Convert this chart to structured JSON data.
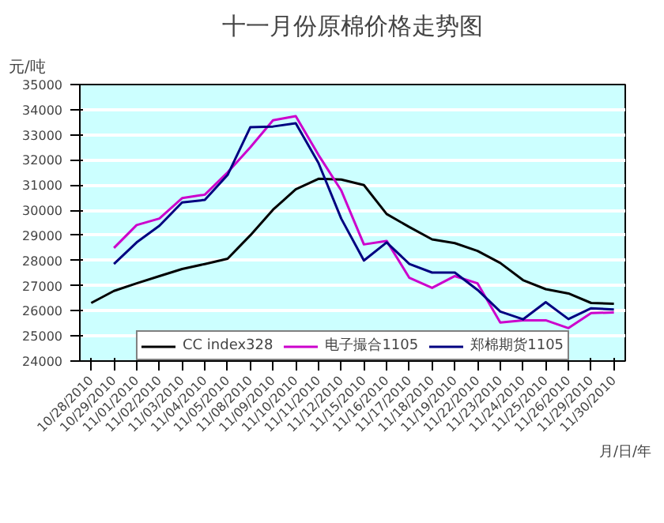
{
  "chart_data": {
    "type": "line",
    "title": "十一月份原棉价格走势图",
    "ylabel": "元/吨",
    "xlabel": "月/日/年",
    "categories": [
      "10/28/2010",
      "10/29/2010",
      "11/01/2010",
      "11/02/2010",
      "11/03/2010",
      "11/04/2010",
      "11/05/2010",
      "11/08/2010",
      "11/09/2010",
      "11/10/2010",
      "11/11/2010",
      "11/12/2010",
      "11/15/2010",
      "11/16/2010",
      "11/17/2010",
      "11/18/2010",
      "11/19/2010",
      "11/22/2010",
      "11/23/2010",
      "11/24/2010",
      "11/25/2010",
      "11/26/2010",
      "11/29/2010",
      "11/30/2010"
    ],
    "series": [
      {
        "name": "CC index328",
        "color": "#000000",
        "values": [
          26310,
          26790,
          27090,
          27380,
          27660,
          27860,
          28070,
          29000,
          30020,
          30830,
          31250,
          31220,
          31000,
          29850,
          29330,
          28840,
          28690,
          28380,
          27900,
          27220,
          26860,
          26690,
          26310,
          26280
        ]
      },
      {
        "name": "电子撮合1105",
        "color": "#cc00cc",
        "values": [
          null,
          28500,
          29410,
          29670,
          30480,
          30620,
          31500,
          32500,
          33580,
          33740,
          32200,
          30790,
          28640,
          28780,
          27310,
          26910,
          27380,
          27090,
          25530,
          25620,
          25620,
          25310,
          25910,
          25930
        ]
      },
      {
        "name": "郑棉期货1105",
        "color": "#000080",
        "values": [
          null,
          27860,
          28720,
          29380,
          30310,
          30410,
          31400,
          33300,
          33330,
          33460,
          31880,
          29670,
          28000,
          28720,
          27860,
          27520,
          27520,
          26830,
          25970,
          25660,
          26340,
          25670,
          26100,
          26050
        ]
      }
    ],
    "ylim": [
      24000,
      35000
    ],
    "yticks": [
      24000,
      25000,
      26000,
      27000,
      28000,
      29000,
      30000,
      31000,
      32000,
      33000,
      34000,
      35000
    ],
    "grid": "y",
    "legend": "bottom",
    "marker": "none",
    "line_style": "solid"
  }
}
